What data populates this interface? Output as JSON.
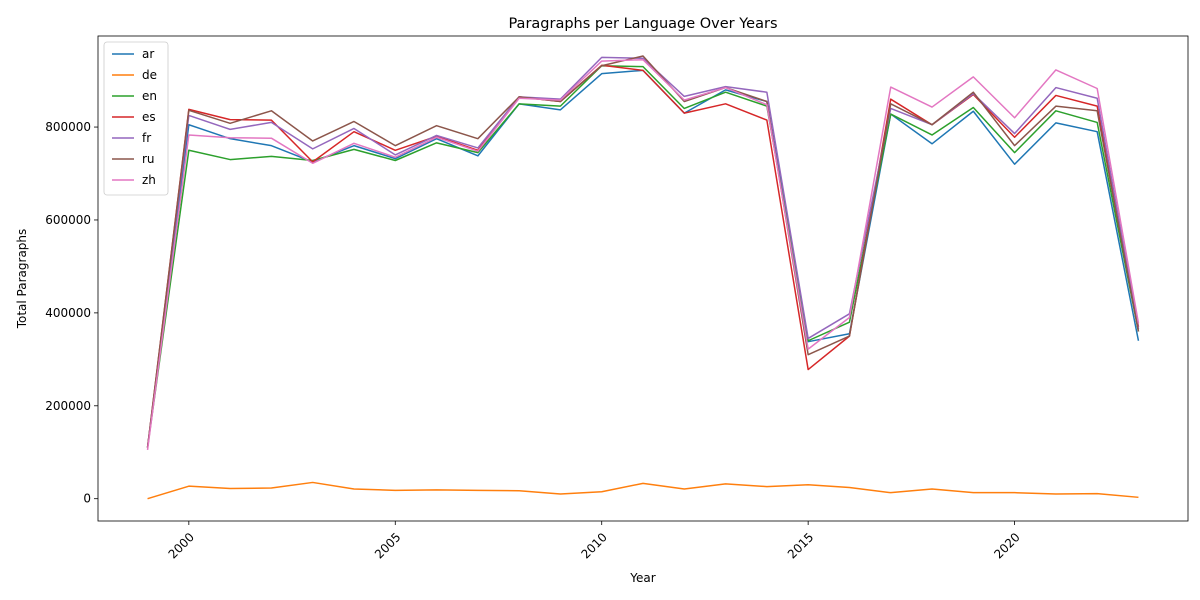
{
  "chart_data": {
    "type": "line",
    "title": "Paragraphs per Language Over Years",
    "xlabel": "Year",
    "ylabel": "Total Paragraphs",
    "x": [
      1999,
      2000,
      2001,
      2002,
      2003,
      2004,
      2005,
      2006,
      2007,
      2008,
      2009,
      2010,
      2011,
      2012,
      2013,
      2014,
      2015,
      2016,
      2017,
      2018,
      2019,
      2020,
      2021,
      2022,
      2023
    ],
    "xlim": [
      1997.8,
      2024.2
    ],
    "ylim": [
      -48000,
      996000
    ],
    "xticks": [
      2000,
      2005,
      2010,
      2015,
      2020
    ],
    "yticks": [
      0,
      200000,
      400000,
      600000,
      800000
    ],
    "grid": false,
    "legend_position": "top-left",
    "series": [
      {
        "name": "ar",
        "color": "#1f77b4",
        "values": [
          110000,
          805000,
          775000,
          760000,
          725000,
          760000,
          732000,
          775000,
          738000,
          850000,
          837000,
          915000,
          922000,
          830000,
          880000,
          855000,
          338000,
          355000,
          828000,
          764000,
          834000,
          720000,
          809000,
          790000,
          340000
        ]
      },
      {
        "name": "de",
        "color": "#ff7f0e",
        "values": [
          0,
          27000,
          22000,
          23000,
          35000,
          21000,
          18000,
          19000,
          18000,
          17000,
          10000,
          15000,
          33000,
          21000,
          32000,
          26000,
          30000,
          24000,
          13000,
          21000,
          13000,
          13000,
          10000,
          11000,
          3000
        ]
      },
      {
        "name": "en",
        "color": "#2ca02c",
        "values": [
          110000,
          750000,
          730000,
          737000,
          728000,
          752000,
          728000,
          766000,
          745000,
          850000,
          845000,
          932000,
          930000,
          840000,
          875000,
          845000,
          340000,
          380000,
          828000,
          783000,
          842000,
          745000,
          835000,
          810000,
          360000
        ]
      },
      {
        "name": "es",
        "color": "#d62728",
        "values": [
          110000,
          838000,
          816000,
          815000,
          725000,
          790000,
          750000,
          780000,
          750000,
          865000,
          855000,
          933000,
          922000,
          830000,
          850000,
          815000,
          278000,
          350000,
          860000,
          805000,
          870000,
          778000,
          868000,
          845000,
          370000
        ]
      },
      {
        "name": "fr",
        "color": "#9467bd",
        "values": [
          110000,
          825000,
          795000,
          810000,
          753000,
          797000,
          740000,
          782000,
          755000,
          865000,
          860000,
          950000,
          948000,
          866000,
          887000,
          875000,
          345000,
          398000,
          840000,
          805000,
          872000,
          786000,
          885000,
          862000,
          365000
        ]
      },
      {
        "name": "ru",
        "color": "#8c564b",
        "values": [
          110000,
          836000,
          808000,
          835000,
          770000,
          812000,
          760000,
          803000,
          775000,
          865000,
          855000,
          932000,
          953000,
          855000,
          885000,
          855000,
          310000,
          350000,
          850000,
          805000,
          875000,
          760000,
          845000,
          835000,
          360000
        ]
      },
      {
        "name": "zh",
        "color": "#e377c2",
        "values": [
          105000,
          783000,
          777000,
          776000,
          722000,
          765000,
          735000,
          778000,
          748000,
          862000,
          858000,
          942000,
          945000,
          858000,
          885000,
          848000,
          322000,
          390000,
          886000,
          843000,
          908000,
          820000,
          923000,
          883000,
          378000
        ]
      }
    ]
  }
}
